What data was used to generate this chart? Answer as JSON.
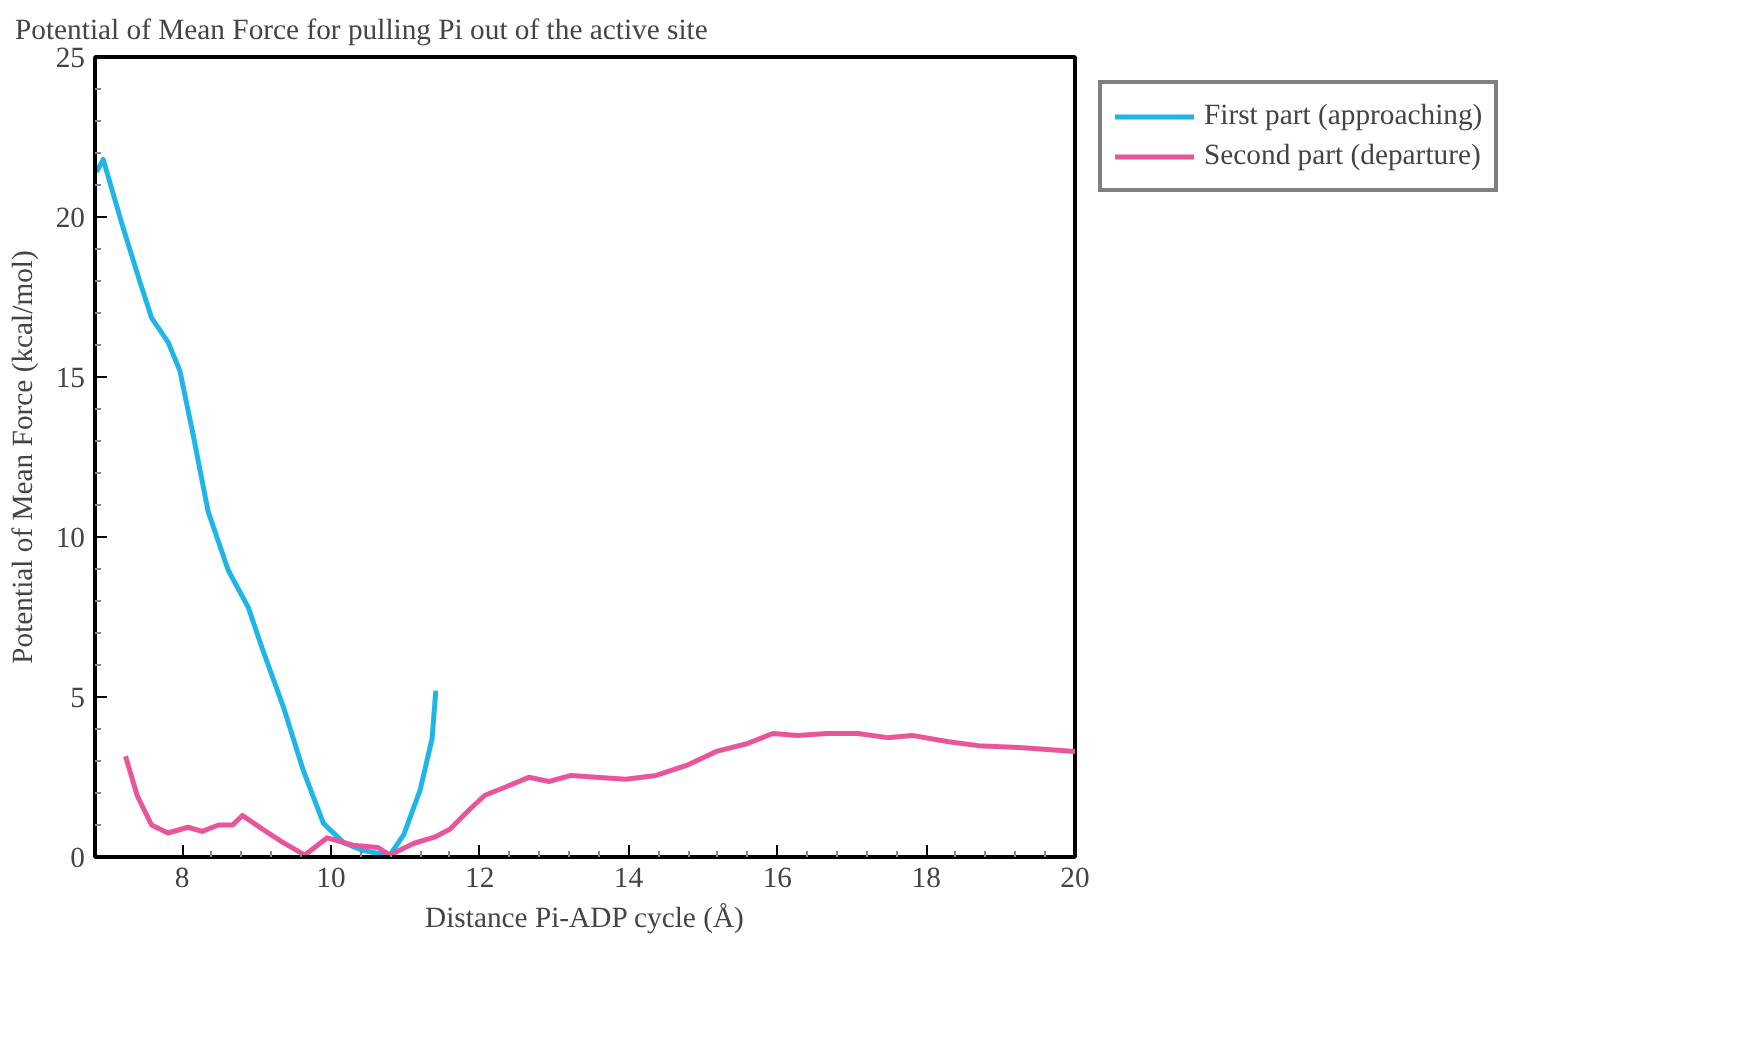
{
  "chart_data": {
    "type": "line",
    "title": "Potential of Mean Force for pulling Pi out of the active site",
    "xlabel": "Distance Pi-ADP cycle (Å)",
    "ylabel": "Potential of Mean Force (kcal/mol)",
    "xlim": [
      6.83,
      20
    ],
    "ylim": [
      0,
      25
    ],
    "xticks": [
      8,
      10,
      12,
      14,
      16,
      18,
      20
    ],
    "yticks": [
      0,
      5,
      10,
      15,
      20,
      25
    ],
    "grid": false,
    "legend": "top right",
    "line_style": "solid",
    "series": [
      {
        "name": "First part (approaching)",
        "color": "#1fb5e8",
        "x": [
          6.85,
          6.94,
          7.19,
          7.43,
          7.59,
          7.81,
          7.97,
          8.14,
          8.35,
          8.62,
          8.89,
          9.08,
          9.36,
          9.63,
          9.9,
          10.17,
          10.44,
          10.79,
          10.98,
          11.2,
          11.36,
          11.41
        ],
        "values": [
          21.4,
          21.8,
          19.8,
          18.0,
          16.85,
          16.1,
          15.2,
          13.3,
          10.8,
          8.96,
          7.8,
          6.5,
          4.7,
          2.7,
          1.05,
          0.45,
          0.2,
          0.05,
          0.7,
          2.1,
          3.7,
          5.2
        ]
      },
      {
        "name": "Second part (departure)",
        "color": "#e8559a",
        "x": [
          7.24,
          7.4,
          7.59,
          7.81,
          8.08,
          8.27,
          8.49,
          8.68,
          8.81,
          9.08,
          9.36,
          9.65,
          9.95,
          10.3,
          10.63,
          10.79,
          11.12,
          11.39,
          11.6,
          11.87,
          12.07,
          12.34,
          12.66,
          12.93,
          13.23,
          13.56,
          13.96,
          14.37,
          14.78,
          15.18,
          15.59,
          15.94,
          16.27,
          16.67,
          17.08,
          17.48,
          17.81,
          18.3,
          18.7,
          19.25,
          20.0
        ],
        "values": [
          3.15,
          1.9,
          1.0,
          0.75,
          0.93,
          0.8,
          1.0,
          1.0,
          1.3,
          0.87,
          0.45,
          0.06,
          0.6,
          0.37,
          0.3,
          0.06,
          0.43,
          0.62,
          0.87,
          1.5,
          1.93,
          2.18,
          2.49,
          2.36,
          2.55,
          2.49,
          2.43,
          2.55,
          2.86,
          3.3,
          3.54,
          3.86,
          3.8,
          3.86,
          3.86,
          3.73,
          3.8,
          3.6,
          3.48,
          3.42,
          3.3
        ]
      }
    ]
  }
}
